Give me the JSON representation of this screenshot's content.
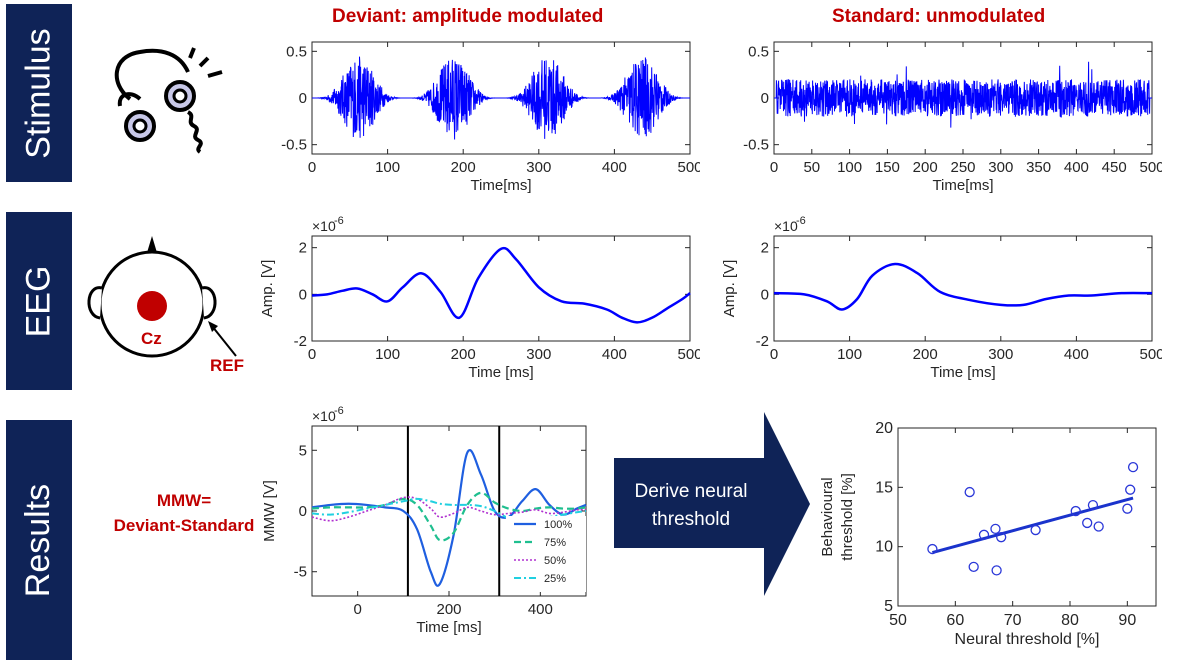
{
  "row_labels": [
    "Stimulus",
    "EEG",
    "Results"
  ],
  "titles": {
    "deviant": "Deviant: amplitude modulated",
    "standard": "Standard: unmodulated"
  },
  "head": {
    "electrode": "Cz",
    "reference": "REF"
  },
  "mmw_label": {
    "line1": "MMW=",
    "line2": "Deviant-Standard"
  },
  "arrow_text": {
    "line1": "Derive neural",
    "line2": "threshold"
  },
  "colors": {
    "navy": "#0f2357",
    "accent_red": "#c00000",
    "trace_blue": "#0000ff",
    "scatter_blue": "#2a37d8"
  },
  "chart_data": [
    {
      "id": "stim_deviant",
      "type": "line",
      "xlabel": "Time[ms]",
      "ylabel": "",
      "xlim": [
        0,
        500
      ],
      "ylim": [
        -0.6,
        0.6
      ],
      "xticks": [
        "0",
        "100",
        "200",
        "300",
        "400",
        "500"
      ],
      "yticks": [
        "0.5",
        "0",
        "-0.5"
      ],
      "description_series": "amplitude-modulated noise, ~4 bursts peaking near 60,190,315,440 ms, max ~0.5"
    },
    {
      "id": "stim_standard",
      "type": "line",
      "xlabel": "Time[ms]",
      "ylabel": "",
      "xlim": [
        0,
        500
      ],
      "ylim": [
        -0.6,
        0.6
      ],
      "xticks": [
        "0",
        "50",
        "100",
        "150",
        "200",
        "250",
        "300",
        "350",
        "400",
        "450",
        "500"
      ],
      "yticks": [
        "0.5",
        "0",
        "-0.5"
      ]
    },
    {
      "id": "eeg_deviant",
      "type": "line",
      "xlabel": "Time [ms]",
      "ylabel": "Amp. [V]",
      "scale_label": "×10",
      "scale_exp": "-6",
      "xlim": [
        0,
        500
      ],
      "ylim": [
        -2,
        2.5
      ],
      "xticks": [
        "0",
        "100",
        "200",
        "300",
        "400",
        "500"
      ],
      "yticks": [
        "2",
        "0",
        "-2"
      ],
      "x": [
        0,
        20,
        40,
        60,
        80,
        100,
        120,
        145,
        170,
        195,
        220,
        250,
        270,
        300,
        330,
        360,
        390,
        410,
        430,
        450,
        470,
        490,
        500
      ],
      "y": [
        -0.05,
        0.0,
        0.15,
        0.25,
        0.0,
        -0.3,
        0.3,
        0.9,
        0.1,
        -1.0,
        0.7,
        1.95,
        1.5,
        0.3,
        -0.3,
        -0.4,
        -0.65,
        -1.0,
        -1.2,
        -1.0,
        -0.6,
        -0.2,
        0.05
      ]
    },
    {
      "id": "eeg_standard",
      "type": "line",
      "xlabel": "Time [ms]",
      "ylabel": "Amp. [V]",
      "scale_label": "×10",
      "scale_exp": "-6",
      "xlim": [
        0,
        500
      ],
      "ylim": [
        -2,
        2.5
      ],
      "xticks": [
        "0",
        "100",
        "200",
        "300",
        "400",
        "500"
      ],
      "yticks": [
        "2",
        "0",
        "-2"
      ],
      "x": [
        0,
        40,
        70,
        90,
        110,
        130,
        160,
        190,
        220,
        260,
        300,
        330,
        360,
        390,
        420,
        460,
        500
      ],
      "y": [
        0.05,
        0.0,
        -0.3,
        -0.65,
        -0.2,
        0.8,
        1.3,
        0.9,
        0.1,
        -0.25,
        -0.45,
        -0.45,
        -0.2,
        -0.05,
        -0.05,
        0.05,
        0.05
      ]
    },
    {
      "id": "mmw",
      "type": "line",
      "xlabel": "Time [ms]",
      "ylabel": "MMW [V]",
      "scale_label": "×10",
      "scale_exp": "-6",
      "xlim": [
        -100,
        500
      ],
      "ylim": [
        -7,
        7
      ],
      "xticks": [
        "0",
        "200",
        "400"
      ],
      "yticks": [
        "5",
        "0",
        "-5"
      ],
      "vlines": [
        110,
        310
      ],
      "legend": [
        "100%",
        "75%",
        "50%",
        "25%"
      ],
      "x": [
        -100,
        -60,
        -20,
        20,
        60,
        100,
        130,
        160,
        180,
        210,
        240,
        270,
        300,
        330,
        360,
        390,
        420,
        450,
        480,
        500
      ],
      "series": [
        {
          "name": "100%",
          "values": [
            0.3,
            0.5,
            0.6,
            0.5,
            0.3,
            0.0,
            -1.5,
            -5.0,
            -6.0,
            -2.0,
            4.8,
            3.0,
            0.0,
            -0.5,
            0.8,
            1.8,
            0.5,
            -0.3,
            0.2,
            0.5
          ]
        },
        {
          "name": "75%",
          "values": [
            0.2,
            0.3,
            0.3,
            0.3,
            0.5,
            1.0,
            0.5,
            -1.2,
            -2.4,
            -1.8,
            0.5,
            1.5,
            0.7,
            0.2,
            0.0,
            0.2,
            0.3,
            0.2,
            0.2,
            0.3
          ]
        },
        {
          "name": "50%",
          "values": [
            -0.5,
            -0.8,
            -0.5,
            0.0,
            0.5,
            1.1,
            1.0,
            0.2,
            -0.5,
            -0.2,
            0.3,
            0.0,
            -0.3,
            -0.2,
            -0.1,
            0.1,
            -0.2,
            -0.1,
            0.1,
            0.1
          ]
        },
        {
          "name": "25%",
          "values": [
            -0.2,
            -0.3,
            -0.1,
            0.2,
            0.5,
            0.8,
            1.0,
            0.8,
            0.6,
            0.5,
            0.5,
            0.4,
            0.0,
            -0.6,
            -1.0,
            -0.8,
            -0.5,
            -0.3,
            -0.1,
            0.0
          ]
        }
      ]
    },
    {
      "id": "threshold_scatter",
      "type": "scatter",
      "xlabel": "Neural threshold [%]",
      "ylabel": "Behavioural threshold [%]",
      "xlim": [
        50,
        95
      ],
      "ylim": [
        5,
        20
      ],
      "xticks": [
        "50",
        "60",
        "70",
        "80",
        "90"
      ],
      "yticks": [
        "20",
        "15",
        "10",
        "5"
      ],
      "points": [
        [
          56,
          9.8
        ],
        [
          62.5,
          14.6
        ],
        [
          63.2,
          8.3
        ],
        [
          65,
          11.0
        ],
        [
          67,
          11.5
        ],
        [
          67.2,
          8.0
        ],
        [
          68,
          10.8
        ],
        [
          74,
          11.4
        ],
        [
          81,
          13.0
        ],
        [
          83,
          12.0
        ],
        [
          84,
          13.5
        ],
        [
          85,
          11.7
        ],
        [
          90,
          13.2
        ],
        [
          90.5,
          14.8
        ],
        [
          91,
          16.7
        ]
      ],
      "fit_line": [
        [
          56,
          9.5
        ],
        [
          91,
          14.1
        ]
      ]
    }
  ]
}
